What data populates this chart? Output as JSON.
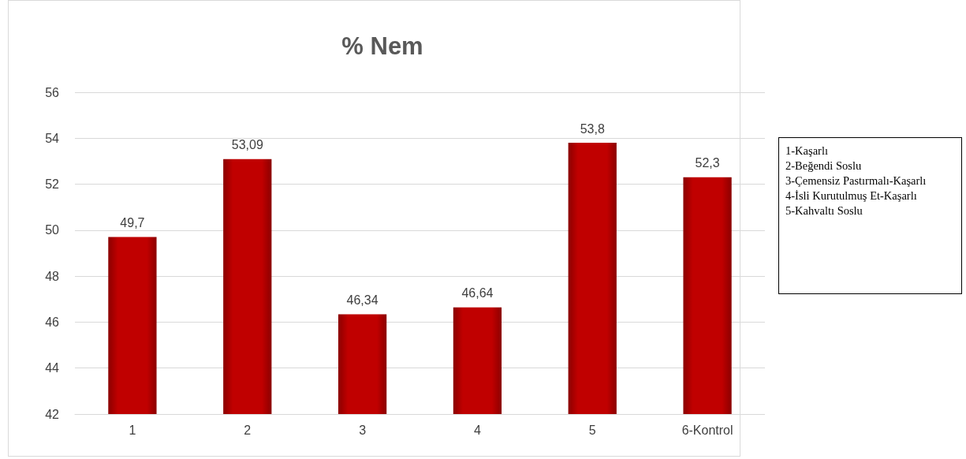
{
  "chart_data": {
    "type": "bar",
    "title": "% Nem",
    "categories": [
      "1",
      "2",
      "3",
      "4",
      "5",
      "6-Kontrol"
    ],
    "values": [
      49.7,
      53.09,
      46.34,
      46.64,
      53.8,
      52.3
    ],
    "value_labels": [
      "49,7",
      "53,09",
      "46,34",
      "46,64",
      "53,8",
      "52,3"
    ],
    "color": "#c00000",
    "ylim": [
      42,
      56
    ],
    "yticks": [
      42,
      44,
      46,
      48,
      50,
      52,
      54,
      56
    ],
    "grid": "y",
    "annotations": [
      "1-Kaşarlı",
      "2-Beğendi Soslu",
      "3-Çemensiz Pastırmalı-Kaşarlı",
      "4-İsli Kurutulmuş Et-Kaşarlı",
      "5-Kahvaltı Soslu"
    ]
  }
}
